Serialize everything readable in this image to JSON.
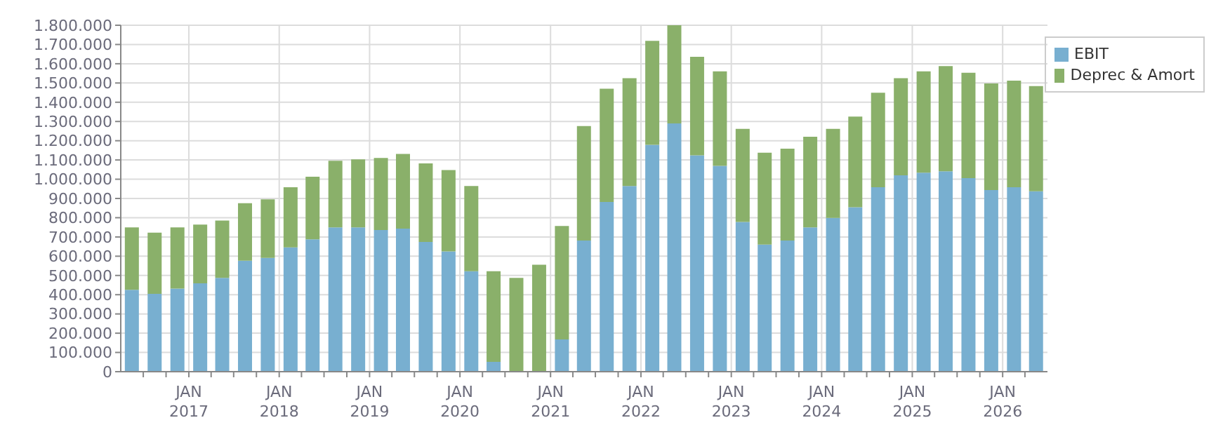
{
  "chart_data": {
    "type": "bar",
    "stacked": true,
    "x": [
      "2016-05-15",
      "2016-08-15",
      "2016-11-15",
      "2017-02-15",
      "2017-05-15",
      "2017-08-15",
      "2017-11-15",
      "2018-02-15",
      "2018-05-15",
      "2018-08-15",
      "2018-11-15",
      "2019-02-15",
      "2019-05-15",
      "2019-08-15",
      "2019-11-15",
      "2020-02-15",
      "2020-05-15",
      "2020-08-15",
      "2020-11-15",
      "2021-02-15",
      "2021-05-15",
      "2021-08-15",
      "2021-11-15",
      "2022-02-15",
      "2022-05-15",
      "2022-08-15",
      "2022-11-15",
      "2023-02-15",
      "2023-05-15",
      "2023-08-15",
      "2023-11-15",
      "2024-02-15",
      "2024-05-15",
      "2024-08-15",
      "2024-11-15",
      "2025-02-15",
      "2025-05-15",
      "2025-08-15",
      "2025-11-15",
      "2026-02-15",
      "2026-05-15"
    ],
    "series": [
      {
        "name": "EBIT",
        "color": "#78afd0",
        "values": [
          425000,
          404000,
          432000,
          459000,
          487000,
          577000,
          591000,
          646000,
          688000,
          750000,
          750000,
          736000,
          743000,
          674000,
          625000,
          522000,
          51000,
          0,
          0,
          168000,
          681000,
          882000,
          965000,
          1179000,
          1290000,
          1124000,
          1069000,
          778000,
          660000,
          681000,
          750000,
          799000,
          854000,
          958000,
          1020000,
          1034000,
          1041000,
          1006000,
          944000,
          958000,
          937000
        ]
      },
      {
        "name": "Deprec & Amort",
        "color": "#8ab06a",
        "values": [
          325000,
          318000,
          318000,
          305000,
          298000,
          298000,
          304000,
          312000,
          325000,
          346000,
          353000,
          374000,
          388000,
          408000,
          423000,
          443000,
          471000,
          487000,
          556000,
          589000,
          595000,
          588000,
          560000,
          540000,
          510000,
          512000,
          491000,
          484000,
          478000,
          478000,
          471000,
          463000,
          471000,
          491000,
          505000,
          526000,
          547000,
          547000,
          554000,
          554000,
          547000
        ]
      }
    ],
    "xlim": [
      "2016-04-01",
      "2026-07-01"
    ],
    "xticks": [
      {
        "value": "2016-07-01",
        "label": null
      },
      {
        "value": "2016-10-01",
        "label": null
      },
      {
        "value": "2017-01-01",
        "label": "JAN\n2017"
      },
      {
        "value": "2017-04-01",
        "label": null
      },
      {
        "value": "2017-07-01",
        "label": null
      },
      {
        "value": "2017-10-01",
        "label": null
      },
      {
        "value": "2018-01-01",
        "label": "JAN\n2018"
      },
      {
        "value": "2018-04-01",
        "label": null
      },
      {
        "value": "2018-07-01",
        "label": null
      },
      {
        "value": "2018-10-01",
        "label": null
      },
      {
        "value": "2019-01-01",
        "label": "JAN\n2019"
      },
      {
        "value": "2019-04-01",
        "label": null
      },
      {
        "value": "2019-07-01",
        "label": null
      },
      {
        "value": "2019-10-01",
        "label": null
      },
      {
        "value": "2020-01-01",
        "label": "JAN\n2020"
      },
      {
        "value": "2020-04-01",
        "label": null
      },
      {
        "value": "2020-07-01",
        "label": null
      },
      {
        "value": "2020-10-01",
        "label": null
      },
      {
        "value": "2021-01-01",
        "label": "JAN\n2021"
      },
      {
        "value": "2021-04-01",
        "label": null
      },
      {
        "value": "2021-07-01",
        "label": null
      },
      {
        "value": "2021-10-01",
        "label": null
      },
      {
        "value": "2022-01-01",
        "label": "JAN\n2022"
      },
      {
        "value": "2022-04-01",
        "label": null
      },
      {
        "value": "2022-07-01",
        "label": null
      },
      {
        "value": "2022-10-01",
        "label": null
      },
      {
        "value": "2023-01-01",
        "label": "JAN\n2023"
      },
      {
        "value": "2023-04-01",
        "label": null
      },
      {
        "value": "2023-07-01",
        "label": null
      },
      {
        "value": "2023-10-01",
        "label": null
      },
      {
        "value": "2024-01-01",
        "label": "JAN\n2024"
      },
      {
        "value": "2024-04-01",
        "label": null
      },
      {
        "value": "2024-07-01",
        "label": null
      },
      {
        "value": "2024-10-01",
        "label": null
      },
      {
        "value": "2025-01-01",
        "label": "JAN\n2025"
      },
      {
        "value": "2025-04-01",
        "label": null
      },
      {
        "value": "2025-07-01",
        "label": null
      },
      {
        "value": "2025-10-01",
        "label": null
      },
      {
        "value": "2026-01-01",
        "label": "JAN\n2026"
      },
      {
        "value": "2026-04-01",
        "label": null
      }
    ],
    "ylim": [
      0,
      1800000
    ],
    "yticks": [
      {
        "value": 0,
        "label": "0"
      },
      {
        "value": 100000,
        "label": "100.000"
      },
      {
        "value": 200000,
        "label": "200.000"
      },
      {
        "value": 300000,
        "label": "300.000"
      },
      {
        "value": 400000,
        "label": "400.000"
      },
      {
        "value": 500000,
        "label": "500.000"
      },
      {
        "value": 600000,
        "label": "600.000"
      },
      {
        "value": 700000,
        "label": "700.000"
      },
      {
        "value": 800000,
        "label": "800.000"
      },
      {
        "value": 900000,
        "label": "900.000"
      },
      {
        "value": 1000000,
        "label": "1.000.000"
      },
      {
        "value": 1100000,
        "label": "1.100.000"
      },
      {
        "value": 1200000,
        "label": "1.200.000"
      },
      {
        "value": 1300000,
        "label": "1.300.000"
      },
      {
        "value": 1400000,
        "label": "1.400.000"
      },
      {
        "value": 1500000,
        "label": "1.500.000"
      },
      {
        "value": 1600000,
        "label": "1.600.000"
      },
      {
        "value": 1700000,
        "label": "1.700.000"
      },
      {
        "value": 1800000,
        "label": "1.800.000"
      }
    ],
    "grid": true,
    "legend": "top right"
  }
}
